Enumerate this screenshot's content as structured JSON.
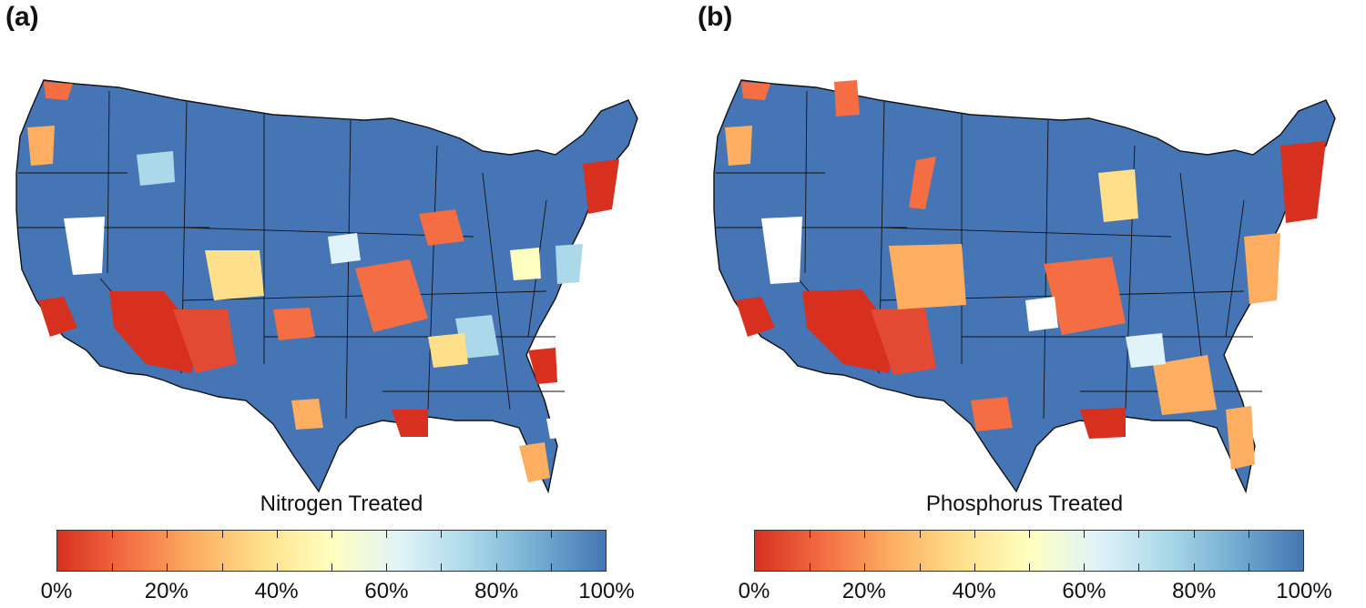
{
  "panels": [
    {
      "label": "(a)",
      "colorbar_title": "Nitrogen Treated",
      "tick_labels": [
        "0%",
        "20%",
        "40%",
        "60%",
        "80%",
        "100%"
      ]
    },
    {
      "label": "(b)",
      "colorbar_title": "Phosphorus Treated",
      "tick_labels": [
        "0%",
        "20%",
        "40%",
        "60%",
        "80%",
        "100%"
      ]
    }
  ],
  "colorscale": {
    "min_value": 0,
    "max_value": 100,
    "unit": "%",
    "stops": [
      "#d7301f",
      "#f46d43",
      "#fdae61",
      "#fee08b",
      "#ffffbf",
      "#e0f3f8",
      "#abd9e9",
      "#74add1",
      "#4575b4"
    ]
  },
  "colors": {
    "base_blue": "#4575b4",
    "border": "#111111",
    "no_data": "#ffffff"
  }
}
